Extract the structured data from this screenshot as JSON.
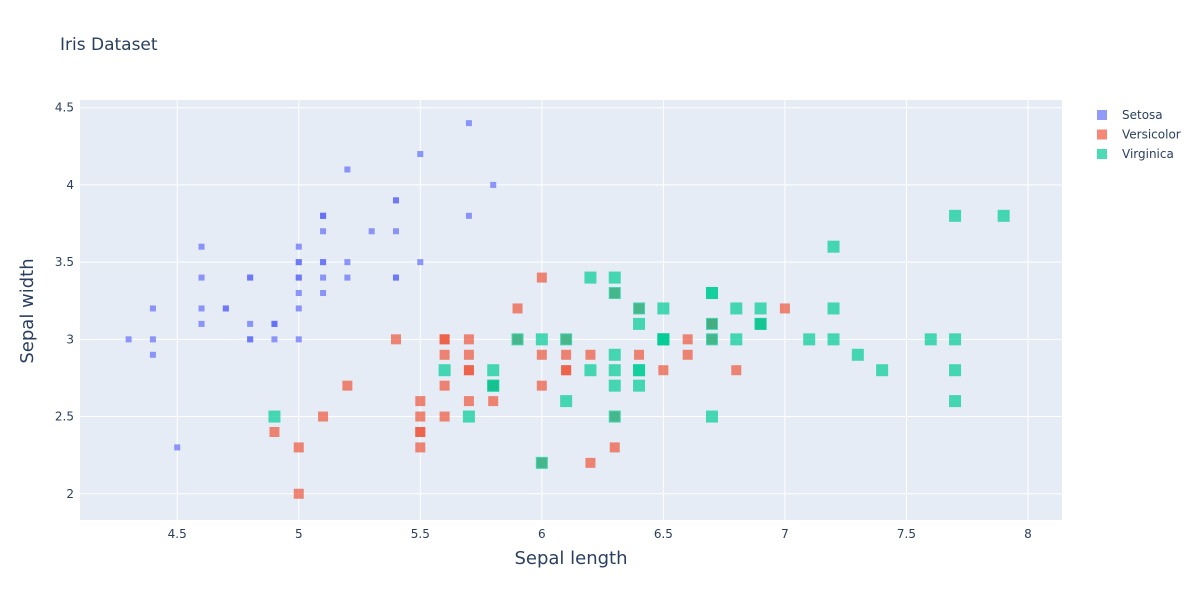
{
  "chart_data": {
    "type": "scatter",
    "title": "Iris Dataset",
    "xlabel": "Sepal length",
    "ylabel": "Sepal width",
    "xlim": [
      4.1,
      8.14
    ],
    "ylim": [
      1.83,
      4.55
    ],
    "x_ticks": [
      4.5,
      5,
      5.5,
      6,
      6.5,
      7,
      7.5,
      8
    ],
    "x_tick_labels": [
      "4.5",
      "5",
      "5.5",
      "6",
      "6.5",
      "7",
      "7.5",
      "8"
    ],
    "y_ticks": [
      2,
      2.5,
      3,
      3.5,
      4,
      4.5
    ],
    "y_tick_labels": [
      "2",
      "2.5",
      "3",
      "3.5",
      "4",
      "4.5"
    ],
    "grid": true,
    "legend_position": "top-right",
    "marker": "square",
    "background": "#e5ecf6",
    "series": [
      {
        "name": "Setosa",
        "color": "#636efa",
        "marker_size": 6,
        "points": [
          [
            5.1,
            3.5
          ],
          [
            4.9,
            3.0
          ],
          [
            4.7,
            3.2
          ],
          [
            4.6,
            3.1
          ],
          [
            5.0,
            3.6
          ],
          [
            5.4,
            3.9
          ],
          [
            4.6,
            3.4
          ],
          [
            5.0,
            3.4
          ],
          [
            4.4,
            2.9
          ],
          [
            4.9,
            3.1
          ],
          [
            5.4,
            3.7
          ],
          [
            4.8,
            3.4
          ],
          [
            4.8,
            3.0
          ],
          [
            4.3,
            3.0
          ],
          [
            5.8,
            4.0
          ],
          [
            5.7,
            4.4
          ],
          [
            5.4,
            3.9
          ],
          [
            5.1,
            3.5
          ],
          [
            5.7,
            3.8
          ],
          [
            5.1,
            3.8
          ],
          [
            5.4,
            3.4
          ],
          [
            5.1,
            3.7
          ],
          [
            4.6,
            3.6
          ],
          [
            5.1,
            3.3
          ],
          [
            4.8,
            3.4
          ],
          [
            5.0,
            3.0
          ],
          [
            5.0,
            3.4
          ],
          [
            5.2,
            3.5
          ],
          [
            5.2,
            3.4
          ],
          [
            4.7,
            3.2
          ],
          [
            4.8,
            3.1
          ],
          [
            5.4,
            3.4
          ],
          [
            5.2,
            4.1
          ],
          [
            5.5,
            4.2
          ],
          [
            4.9,
            3.1
          ],
          [
            5.0,
            3.2
          ],
          [
            5.5,
            3.5
          ],
          [
            4.9,
            3.1
          ],
          [
            4.4,
            3.0
          ],
          [
            5.1,
            3.4
          ],
          [
            5.0,
            3.5
          ],
          [
            4.5,
            2.3
          ],
          [
            4.4,
            3.2
          ],
          [
            5.0,
            3.5
          ],
          [
            5.1,
            3.8
          ],
          [
            4.8,
            3.0
          ],
          [
            5.1,
            3.8
          ],
          [
            4.6,
            3.2
          ],
          [
            5.3,
            3.7
          ],
          [
            5.0,
            3.3
          ]
        ]
      },
      {
        "name": "Versicolor",
        "color": "#ef553b",
        "marker_size": 10,
        "points": [
          [
            7.0,
            3.2
          ],
          [
            6.4,
            3.2
          ],
          [
            6.9,
            3.1
          ],
          [
            5.5,
            2.3
          ],
          [
            6.5,
            2.8
          ],
          [
            5.7,
            2.8
          ],
          [
            6.3,
            3.3
          ],
          [
            4.9,
            2.4
          ],
          [
            6.6,
            2.9
          ],
          [
            5.2,
            2.7
          ],
          [
            5.0,
            2.0
          ],
          [
            5.9,
            3.0
          ],
          [
            6.0,
            2.2
          ],
          [
            6.1,
            2.9
          ],
          [
            5.6,
            2.9
          ],
          [
            6.7,
            3.1
          ],
          [
            5.6,
            3.0
          ],
          [
            5.8,
            2.7
          ],
          [
            6.2,
            2.2
          ],
          [
            5.6,
            2.5
          ],
          [
            5.9,
            3.2
          ],
          [
            6.1,
            2.8
          ],
          [
            6.3,
            2.5
          ],
          [
            6.1,
            2.8
          ],
          [
            6.4,
            2.9
          ],
          [
            6.6,
            3.0
          ],
          [
            6.8,
            2.8
          ],
          [
            6.7,
            3.0
          ],
          [
            6.0,
            2.9
          ],
          [
            5.7,
            2.6
          ],
          [
            5.5,
            2.4
          ],
          [
            5.5,
            2.4
          ],
          [
            5.8,
            2.7
          ],
          [
            6.0,
            2.7
          ],
          [
            5.4,
            3.0
          ],
          [
            6.0,
            3.4
          ],
          [
            6.7,
            3.1
          ],
          [
            6.3,
            2.3
          ],
          [
            5.6,
            3.0
          ],
          [
            5.5,
            2.5
          ],
          [
            5.5,
            2.6
          ],
          [
            6.1,
            3.0
          ],
          [
            5.8,
            2.6
          ],
          [
            5.0,
            2.3
          ],
          [
            5.6,
            2.7
          ],
          [
            5.7,
            3.0
          ],
          [
            5.7,
            2.9
          ],
          [
            6.2,
            2.9
          ],
          [
            5.1,
            2.5
          ],
          [
            5.7,
            2.8
          ]
        ]
      },
      {
        "name": "Virginica",
        "color": "#00cc96",
        "marker_size": 12,
        "points": [
          [
            6.3,
            3.3
          ],
          [
            5.8,
            2.7
          ],
          [
            7.1,
            3.0
          ],
          [
            6.3,
            2.9
          ],
          [
            6.5,
            3.0
          ],
          [
            7.6,
            3.0
          ],
          [
            4.9,
            2.5
          ],
          [
            7.3,
            2.9
          ],
          [
            6.7,
            2.5
          ],
          [
            7.2,
            3.6
          ],
          [
            6.5,
            3.2
          ],
          [
            6.4,
            2.7
          ],
          [
            6.8,
            3.0
          ],
          [
            5.7,
            2.5
          ],
          [
            5.8,
            2.8
          ],
          [
            6.4,
            3.2
          ],
          [
            6.5,
            3.0
          ],
          [
            7.7,
            3.8
          ],
          [
            7.7,
            2.6
          ],
          [
            6.0,
            2.2
          ],
          [
            6.9,
            3.2
          ],
          [
            5.6,
            2.8
          ],
          [
            7.7,
            2.8
          ],
          [
            6.3,
            2.7
          ],
          [
            6.7,
            3.3
          ],
          [
            7.2,
            3.2
          ],
          [
            6.2,
            2.8
          ],
          [
            6.1,
            3.0
          ],
          [
            6.4,
            2.8
          ],
          [
            7.2,
            3.0
          ],
          [
            7.4,
            2.8
          ],
          [
            7.9,
            3.8
          ],
          [
            6.4,
            2.8
          ],
          [
            6.3,
            2.8
          ],
          [
            6.1,
            2.6
          ],
          [
            7.7,
            3.0
          ],
          [
            6.3,
            3.4
          ],
          [
            6.4,
            3.1
          ],
          [
            6.0,
            3.0
          ],
          [
            6.9,
            3.1
          ],
          [
            6.7,
            3.1
          ],
          [
            6.9,
            3.1
          ],
          [
            5.8,
            2.7
          ],
          [
            6.8,
            3.2
          ],
          [
            6.7,
            3.3
          ],
          [
            6.7,
            3.0
          ],
          [
            6.3,
            2.5
          ],
          [
            6.5,
            3.0
          ],
          [
            6.2,
            3.4
          ],
          [
            5.9,
            3.0
          ]
        ]
      }
    ]
  }
}
